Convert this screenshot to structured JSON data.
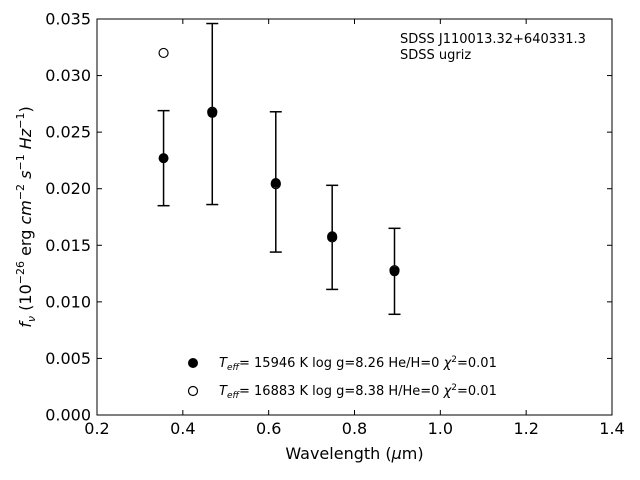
{
  "chart_data": {
    "type": "scatter",
    "annotation": [
      "SDSS J110013.32+640331.3",
      "SDSS ugriz"
    ],
    "xlabel": "Wavelength (μm)",
    "ylabel": "fν (10⁻²⁶ erg cm⁻² s⁻¹ Hz⁻¹)",
    "xlim": [
      0.2,
      1.4
    ],
    "ylim": [
      0.0,
      0.035
    ],
    "x_ticks": [
      "0.2",
      "0.4",
      "0.6",
      "0.8",
      "1.0",
      "1.2",
      "1.4"
    ],
    "y_ticks": [
      "0.000",
      "0.005",
      "0.010",
      "0.015",
      "0.020",
      "0.025",
      "0.030",
      "0.035"
    ],
    "grid": false,
    "legend_position": "bottom-center",
    "observed": {
      "x": [
        0.3551,
        0.4686,
        0.6166,
        0.748,
        0.8932
      ],
      "y": [
        0.0227,
        0.0266,
        0.0206,
        0.0157,
        0.0127
      ],
      "yerr": [
        0.0042,
        0.008,
        0.0062,
        0.0046,
        0.0038
      ]
    },
    "series": [
      {
        "legend": "T_eff= 15946 K  log g=8.26  He/H=0  χ²=0.01",
        "marker": "filled",
        "x": [
          0.3551,
          0.4686,
          0.6166,
          0.748,
          0.8932
        ],
        "y": [
          0.0227,
          0.0267,
          0.0205,
          0.0158,
          0.0127
        ]
      },
      {
        "legend": "T_eff= 16883 K  log g=8.38  H/He=0  χ²=0.01",
        "marker": "open",
        "x": [
          0.3551,
          0.4686,
          0.6166,
          0.748,
          0.8932
        ],
        "y": [
          0.032,
          0.0268,
          0.0204,
          0.0157,
          0.0128
        ]
      }
    ]
  }
}
